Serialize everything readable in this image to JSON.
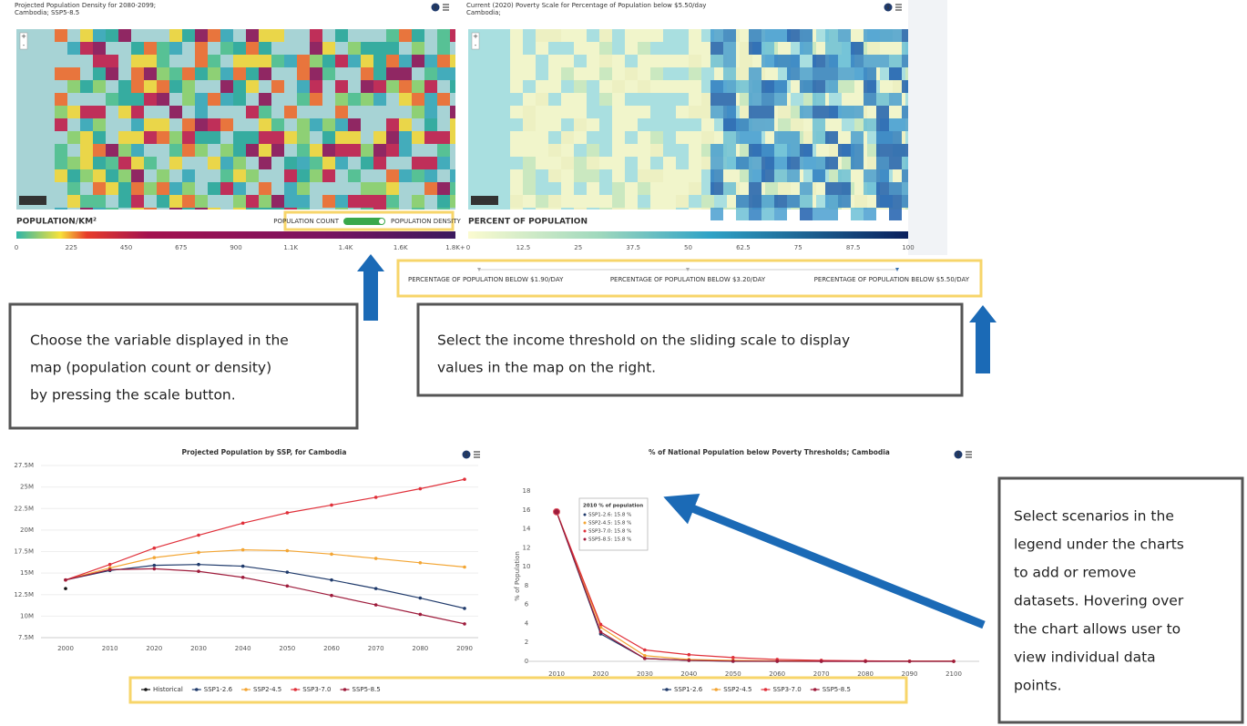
{
  "map_left": {
    "title_lines": [
      "Projected Population Density for 2080-2099;",
      "Cambodia; SSP5-8.5"
    ],
    "zoom_in": "+",
    "zoom_out": "-",
    "disclaimer": "Disclaimer",
    "legend_title": "POPULATION/KM²",
    "toggle_off": "POPULATION COUNT",
    "toggle_on": "POPULATION DENSITY",
    "scale_ticks": [
      "0",
      "225",
      "450",
      "675",
      "900",
      "1.1K",
      "1.4K",
      "1.6K",
      "1.8K+"
    ]
  },
  "map_right": {
    "title_lines": [
      "Current (2020) Poverty Scale for Percentage of Population below $5.50/day",
      "Cambodia;"
    ],
    "zoom_in": "+",
    "zoom_out": "-",
    "disclaimer": "Disclaimer",
    "legend_title": "PERCENT OF POPULATION",
    "scale_ticks": [
      "0",
      "12.5",
      "25",
      "37.5",
      "50",
      "62.5",
      "75",
      "87.5",
      "100"
    ]
  },
  "slider": {
    "options": [
      "PERCENTAGE OF POPULATION BELOW $1.90/DAY",
      "PERCENTAGE OF POPULATION BELOW $3.20/DAY",
      "PERCENTAGE OF POPULATION BELOW $5.50/DAY"
    ]
  },
  "callouts": [
    {
      "lines": [
        "Choose the variable displayed in the",
        "map (population count or density)",
        "by pressing the scale button."
      ]
    },
    {
      "lines": [
        "Select the income threshold on the sliding scale to display",
        "values in the map on the right."
      ]
    },
    {
      "lines": [
        "Select scenarios in the",
        "legend under the charts",
        "to add or remove",
        "datasets. Hovering over",
        "the chart allows user to",
        "view individual data",
        "points."
      ]
    }
  ],
  "tooltip": {
    "title": "2010 % of population",
    "rows": [
      "SSP1-2.6: 15.8 %",
      "SSP2-4.5: 15.8 %",
      "SSP3-7.0: 15.8 %",
      "SSP5-8.5: 15.8 %"
    ]
  },
  "chart_data": [
    {
      "type": "line",
      "title": "Projected Population by SSP, for Cambodia",
      "categories": [
        "2000",
        "2010",
        "2020",
        "2030",
        "2040",
        "2050",
        "2060",
        "2070",
        "2080",
        "2090"
      ],
      "ylim": [
        7500000,
        27500000
      ],
      "yticks": [
        {
          "value": 7500000,
          "label": "7.5M"
        },
        {
          "value": 10000000,
          "label": "10M"
        },
        {
          "value": 12500000,
          "label": "12.5M"
        },
        {
          "value": 15000000,
          "label": "15M"
        },
        {
          "value": 17500000,
          "label": "17.5M"
        },
        {
          "value": 20000000,
          "label": "20M"
        },
        {
          "value": 22500000,
          "label": "22.5M"
        },
        {
          "value": 25000000,
          "label": "25M"
        },
        {
          "value": 27500000,
          "label": "27.5M"
        }
      ],
      "grid": true,
      "series": [
        {
          "name": "Historical",
          "color": "#111111",
          "values": [
            13200000,
            null,
            null,
            null,
            null,
            null,
            null,
            null,
            null,
            null
          ]
        },
        {
          "name": "SSP1-2.6",
          "color": "#1f3a6b",
          "values": [
            14200000,
            15300000,
            15900000,
            16000000,
            15800000,
            15100000,
            14200000,
            13200000,
            12100000,
            10900000
          ]
        },
        {
          "name": "SSP2-4.5",
          "color": "#f3a533",
          "values": [
            14200000,
            15600000,
            16800000,
            17400000,
            17700000,
            17600000,
            17200000,
            16700000,
            16200000,
            15700000
          ]
        },
        {
          "name": "SSP3-7.0",
          "color": "#e0303a",
          "values": [
            14200000,
            16000000,
            17900000,
            19400000,
            20800000,
            22000000,
            22900000,
            23800000,
            24800000,
            25900000
          ]
        },
        {
          "name": "SSP5-8.5",
          "color": "#9e1b3b",
          "values": [
            14200000,
            15400000,
            15500000,
            15200000,
            14500000,
            13500000,
            12400000,
            11300000,
            10200000,
            9100000
          ]
        }
      ]
    },
    {
      "type": "line",
      "title": "% of National Population below Poverty Thresholds; Cambodia",
      "y_label": "% of Population",
      "categories": [
        "2010",
        "2020",
        "2030",
        "2040",
        "2050",
        "2060",
        "2070",
        "2080",
        "2090",
        "2100"
      ],
      "ylim": [
        0,
        18
      ],
      "yticks": [
        0,
        2,
        4,
        6,
        8,
        10,
        12,
        14,
        16,
        18
      ],
      "grid": false,
      "series": [
        {
          "name": "SSP1-2.6",
          "color": "#1f3a6b",
          "values": [
            15.8,
            2.9,
            0.3,
            0.1,
            0,
            0,
            0,
            0,
            0,
            0
          ]
        },
        {
          "name": "SSP2-4.5",
          "color": "#f3a533",
          "values": [
            15.8,
            3.6,
            0.6,
            0.2,
            0.1,
            0.05,
            0.03,
            0.02,
            0.01,
            0.01
          ]
        },
        {
          "name": "SSP3-7.0",
          "color": "#e0303a",
          "values": [
            15.8,
            3.9,
            1.2,
            0.7,
            0.4,
            0.2,
            0.1,
            0.05,
            0.02,
            0.01
          ]
        },
        {
          "name": "SSP5-8.5",
          "color": "#9e1b3b",
          "values": [
            15.8,
            3.1,
            0.3,
            0.1,
            0.02,
            0.01,
            0,
            0,
            0,
            0
          ]
        }
      ]
    }
  ]
}
